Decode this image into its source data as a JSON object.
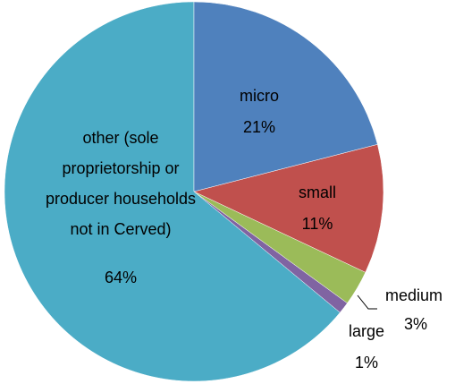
{
  "chart_data": {
    "type": "pie",
    "categories": [
      "micro",
      "small",
      "medium",
      "large",
      "other (sole proprietorship or producer households not in Cerved)"
    ],
    "values": [
      21,
      11,
      3,
      1,
      64
    ],
    "value_labels": [
      "21%",
      "11%",
      "3%",
      "1%",
      "64%"
    ],
    "colors": [
      "#4f81bd",
      "#c0504d",
      "#9bbb59",
      "#8064a2",
      "#4bacc6"
    ]
  }
}
